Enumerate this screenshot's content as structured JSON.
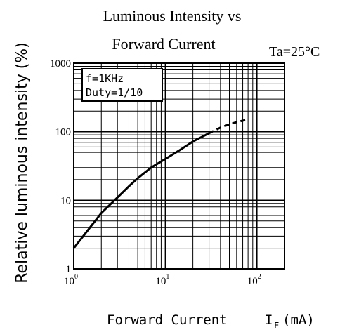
{
  "chart_data": {
    "type": "line",
    "title": "Luminous Intensity vs",
    "subtitle": "Forward Current",
    "condition": "Ta=25°C",
    "xlabel": "Forward Current",
    "xlabel_symbol": "I",
    "xlabel_subscript": "F",
    "xlabel_unit": "(mA)",
    "ylabel": "Relative luminous intensity (%)",
    "xscale": "log",
    "yscale": "log",
    "xlim": [
      1,
      200
    ],
    "ylim": [
      1,
      1000
    ],
    "x_ticks": [
      {
        "value": 1,
        "base": "10",
        "exp": "0"
      },
      {
        "value": 10,
        "base": "10",
        "exp": "1"
      },
      {
        "value": 100,
        "base": "10",
        "exp": "2"
      }
    ],
    "y_ticks": [
      {
        "value": 1,
        "label": "1"
      },
      {
        "value": 10,
        "label": "10"
      },
      {
        "value": 100,
        "label": "100"
      },
      {
        "value": 1000,
        "label": "1000"
      }
    ],
    "grid": true,
    "annotation_lines": [
      "f=1KHz",
      "Duty=1/10"
    ],
    "series": [
      {
        "x": [
          1,
          1.5,
          2,
          3,
          4,
          5,
          7,
          10,
          15,
          20,
          30,
          40,
          50,
          60,
          70,
          80
        ],
        "y": [
          2,
          4,
          6.5,
          11,
          16,
          21,
          30,
          40,
          56,
          72,
          95,
          115,
          128,
          138,
          145,
          150
        ],
        "solid_until": 30
      }
    ]
  }
}
